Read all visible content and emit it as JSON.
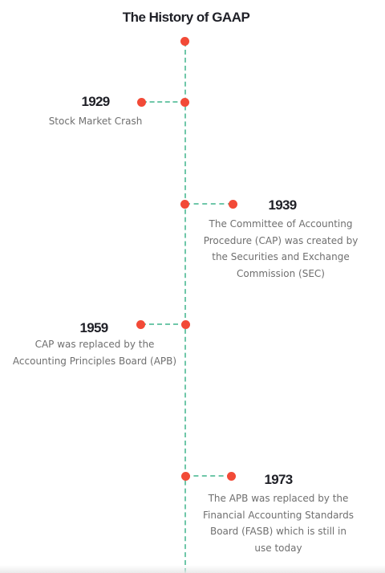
{
  "title": "The History of GAAP",
  "colors": {
    "line": "#6fc7a9",
    "dot": "#f24a37",
    "heading": "#1f2027",
    "text": "#6f6f6f"
  },
  "events": [
    {
      "year": "1929",
      "side": "left",
      "text": "Stock Market Crash"
    },
    {
      "year": "1939",
      "side": "right",
      "text": "The Committee of Accounting Procedure (CAP) was created by the Securities and Exchange Commission (SEC)"
    },
    {
      "year": "1959",
      "side": "left",
      "text": "CAP was replaced by the Accounting Principles Board (APB)"
    },
    {
      "year": "1973",
      "side": "right",
      "text": "The APB was replaced by the Financial Accounting Standards Board (FASB) which is still in use today"
    }
  ]
}
